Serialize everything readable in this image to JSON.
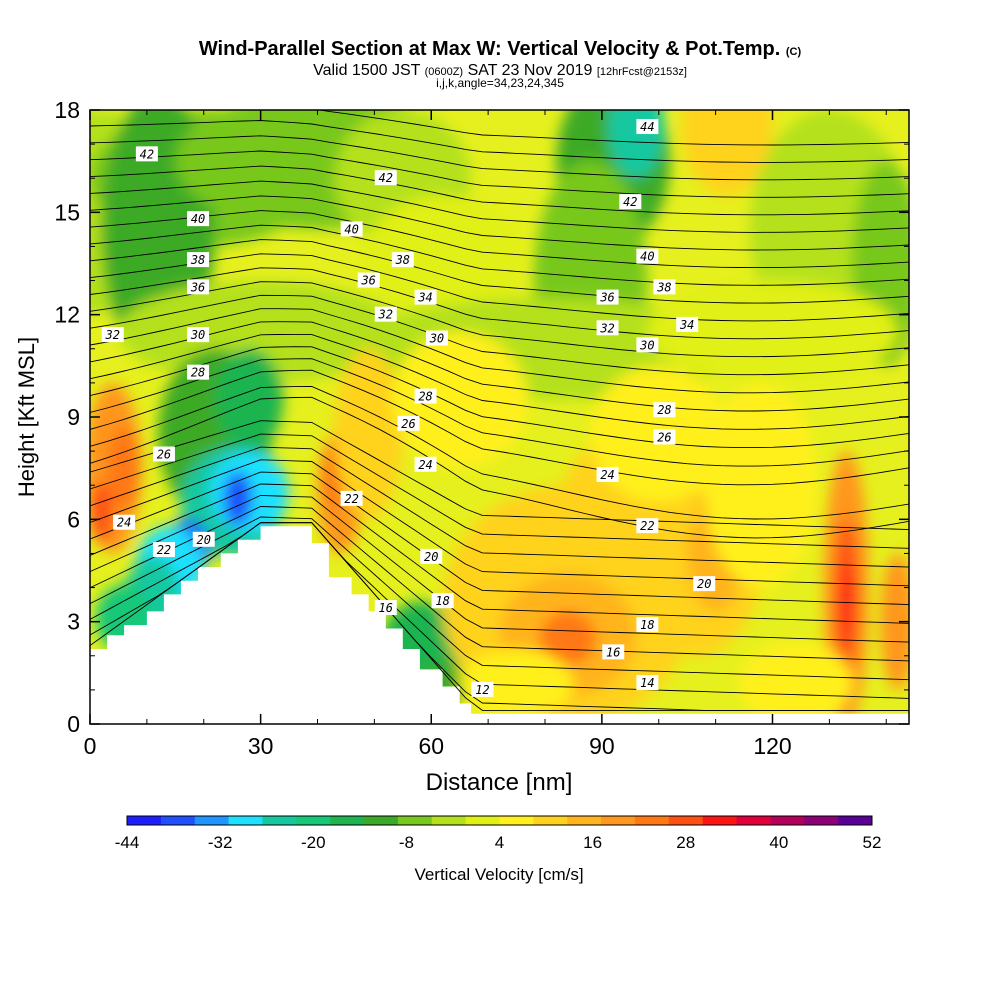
{
  "title": {
    "main": "Wind-Parallel Section at Max W: Vertical Velocity & Pot.Temp.",
    "main_suffix": "(C)",
    "valid_prefix": "Valid 1500 JST",
    "valid_z": "(0600Z)",
    "valid_date": "SAT 23 Nov 2019",
    "valid_fcst": "[12hrFcst@2153z]",
    "ijk": "i,j,k,angle=34,23,24,345"
  },
  "chart_data": {
    "type": "heatmap",
    "xlabel": "Distance [nm]",
    "ylabel": "Height [Kft MSL]",
    "xlim": [
      0,
      144
    ],
    "ylim": [
      0,
      18
    ],
    "x_ticks": [
      0,
      30,
      60,
      90,
      120
    ],
    "y_ticks": [
      0,
      3,
      6,
      9,
      12,
      15,
      18
    ],
    "colorbar": {
      "label": "Vertical Velocity [cm/s]",
      "tick_labels": [
        "-44",
        "-32",
        "-20",
        "-8",
        "4",
        "16",
        "28",
        "40",
        "52"
      ],
      "colors": [
        "#1e1eff",
        "#1e50ff",
        "#1e96ff",
        "#1ee1ff",
        "#14c8a0",
        "#14c878",
        "#1eb450",
        "#3caa28",
        "#78c81e",
        "#b4e11e",
        "#e1f014",
        "#fff01e",
        "#ffd21e",
        "#ffb41e",
        "#ff961e",
        "#ff7814",
        "#ff5014",
        "#ff1414",
        "#e1003c",
        "#b4005a",
        "#8c0078",
        "#5a0096"
      ]
    },
    "theta_labels": [
      {
        "t": "42",
        "x": 10,
        "y": 16.7
      },
      {
        "t": "42",
        "x": 52,
        "y": 16.0
      },
      {
        "t": "44",
        "x": 98,
        "y": 17.5
      },
      {
        "t": "42",
        "x": 95,
        "y": 15.3
      },
      {
        "t": "40",
        "x": 19,
        "y": 14.8
      },
      {
        "t": "40",
        "x": 46,
        "y": 14.5
      },
      {
        "t": "40",
        "x": 98,
        "y": 13.7
      },
      {
        "t": "38",
        "x": 19,
        "y": 13.6
      },
      {
        "t": "38",
        "x": 55,
        "y": 13.6
      },
      {
        "t": "38",
        "x": 101,
        "y": 12.8
      },
      {
        "t": "36",
        "x": 19,
        "y": 12.8
      },
      {
        "t": "36",
        "x": 49,
        "y": 13.0
      },
      {
        "t": "36",
        "x": 91,
        "y": 12.5
      },
      {
        "t": "34",
        "x": 59,
        "y": 12.5
      },
      {
        "t": "34",
        "x": 105,
        "y": 11.7
      },
      {
        "t": "32",
        "x": 4,
        "y": 11.4
      },
      {
        "t": "32",
        "x": 52,
        "y": 12.0
      },
      {
        "t": "32",
        "x": 91,
        "y": 11.6
      },
      {
        "t": "30",
        "x": 19,
        "y": 11.4
      },
      {
        "t": "30",
        "x": 61,
        "y": 11.3
      },
      {
        "t": "30",
        "x": 98,
        "y": 11.1
      },
      {
        "t": "28",
        "x": 19,
        "y": 10.3
      },
      {
        "t": "28",
        "x": 59,
        "y": 9.6
      },
      {
        "t": "28",
        "x": 101,
        "y": 9.2
      },
      {
        "t": "26",
        "x": 13,
        "y": 7.9
      },
      {
        "t": "26",
        "x": 56,
        "y": 8.8
      },
      {
        "t": "26",
        "x": 101,
        "y": 8.4
      },
      {
        "t": "24",
        "x": 6,
        "y": 5.9
      },
      {
        "t": "24",
        "x": 59,
        "y": 7.6
      },
      {
        "t": "24",
        "x": 91,
        "y": 7.3
      },
      {
        "t": "22",
        "x": 13,
        "y": 5.1
      },
      {
        "t": "22",
        "x": 46,
        "y": 6.6
      },
      {
        "t": "22",
        "x": 98,
        "y": 5.8
      },
      {
        "t": "20",
        "x": 20,
        "y": 5.4
      },
      {
        "t": "20",
        "x": 60,
        "y": 4.9
      },
      {
        "t": "20",
        "x": 108,
        "y": 4.1
      },
      {
        "t": "18",
        "x": 62,
        "y": 3.6
      },
      {
        "t": "18",
        "x": 98,
        "y": 2.9
      },
      {
        "t": "16",
        "x": 52,
        "y": 3.4
      },
      {
        "t": "16",
        "x": 92,
        "y": 2.1
      },
      {
        "t": "14",
        "x": 98,
        "y": 1.2
      },
      {
        "t": "12",
        "x": 69,
        "y": 1.0
      }
    ]
  }
}
